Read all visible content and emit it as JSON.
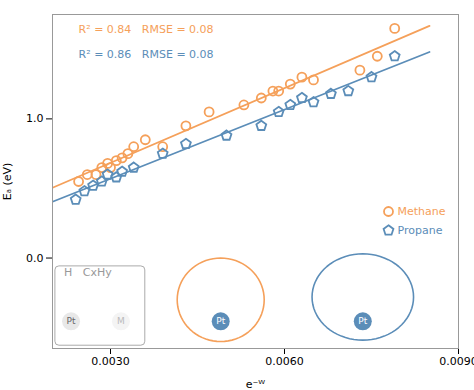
{
  "chart_data": {
    "type": "scatter",
    "xlabel": "e⁻ᵂ",
    "ylabel": "Eₐ (eV)",
    "xlim": [
      0.002,
      0.009
    ],
    "ylim": [
      -0.65,
      1.75
    ],
    "xticks": [
      0.003,
      0.006,
      0.009
    ],
    "yticks": [
      0,
      1
    ],
    "legend": "right",
    "series": [
      {
        "name": "Methane",
        "color": "#F5A05A",
        "marker": "circle",
        "x": [
          0.00245,
          0.0026,
          0.00275,
          0.00285,
          0.00295,
          0.003,
          0.0031,
          0.0032,
          0.0033,
          0.0034,
          0.0036,
          0.0039,
          0.0043,
          0.0047,
          0.0053,
          0.0056,
          0.0058,
          0.0059,
          0.0061,
          0.0063,
          0.0065,
          0.0073,
          0.0076,
          0.0079
        ],
        "values": [
          0.55,
          0.6,
          0.6,
          0.65,
          0.68,
          0.65,
          0.7,
          0.72,
          0.75,
          0.8,
          0.85,
          0.8,
          0.95,
          1.05,
          1.1,
          1.15,
          1.2,
          1.2,
          1.25,
          1.3,
          1.28,
          1.35,
          1.45,
          1.65
        ],
        "fit": {
          "x": [
            0.002,
            0.0085
          ],
          "values": [
            0.5048,
            1.6678
          ]
        }
      },
      {
        "name": "Propane",
        "color": "#5B8DB8",
        "marker": "pentagon",
        "x": [
          0.0024,
          0.00255,
          0.0027,
          0.00285,
          0.00295,
          0.0031,
          0.0032,
          0.0034,
          0.0039,
          0.0043,
          0.005,
          0.0056,
          0.0059,
          0.0061,
          0.0063,
          0.0065,
          0.0068,
          0.0071,
          0.0075,
          0.0079
        ],
        "values": [
          0.42,
          0.48,
          0.52,
          0.55,
          0.6,
          0.58,
          0.62,
          0.65,
          0.75,
          0.82,
          0.88,
          0.95,
          1.05,
          1.1,
          1.15,
          1.12,
          1.18,
          1.2,
          1.3,
          1.45
        ],
        "fit": {
          "x": [
            0.002,
            0.0085
          ],
          "values": [
            0.4047,
            1.4804
          ]
        }
      }
    ],
    "insets": [
      {
        "shape": "box",
        "x": [
          0.00205,
          0.0036
        ],
        "y": [
          -0.63,
          -0.06
        ],
        "color": "#aaaaaa"
      },
      {
        "shape": "ellipse",
        "x": [
          0.00415,
          0.00565
        ],
        "y": [
          -0.6,
          0.0
        ],
        "color": "#F5A05A"
      },
      {
        "shape": "ellipse",
        "x": [
          0.006475,
          0.008225
        ],
        "y": [
          -0.59,
          0.03
        ],
        "color": "#5B8DB8"
      }
    ],
    "annotations": [
      {
        "text": "R² = 0.84   RMSE = 0.08",
        "x": 0.00245,
        "y": 1.62,
        "color": "#F5A05A"
      },
      {
        "text": "R² = 0.86   RMSE = 0.08",
        "x": 0.00245,
        "y": 1.44,
        "color": "#5B8DB8"
      },
      {
        "text": "H   CxHy",
        "x": 0.0022,
        "y": -0.13,
        "color": "#999999"
      },
      {
        "text": "Pt",
        "x": 0.00232,
        "y": -0.455,
        "color": "#666666",
        "marker": "circle",
        "marker_color": "#e8e8e8"
      },
      {
        "text": "M",
        "x": 0.00318,
        "y": -0.455,
        "color": "#bbbbbb",
        "marker": "circle",
        "marker_color": "#f4f4f4"
      },
      {
        "text": "Pt",
        "x": 0.0049,
        "y": -0.455,
        "color": "white",
        "marker": "circle",
        "marker_color": "#5B8DB8"
      },
      {
        "text": "Pt",
        "x": 0.00735,
        "y": -0.455,
        "color": "white",
        "marker": "circle",
        "marker_color": "#5B8DB8"
      }
    ]
  }
}
